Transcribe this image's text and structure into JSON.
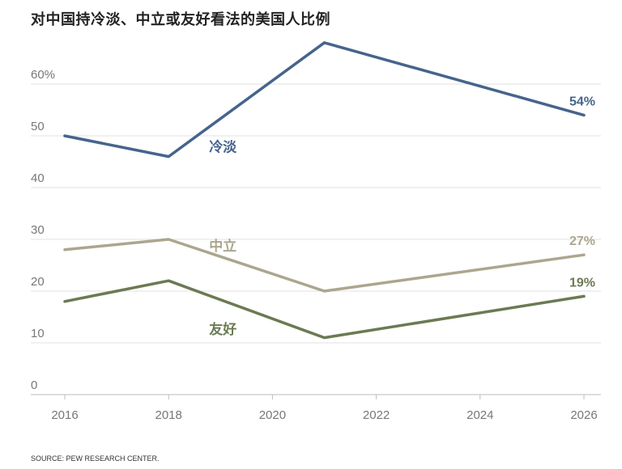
{
  "chart_data": {
    "type": "line",
    "title": "对中国持冷淡、中立或友好看法的美国人比例",
    "xlabel": "",
    "ylabel": "",
    "x": [
      2016,
      2018,
      2021,
      2026
    ],
    "xlim": [
      2016,
      2026
    ],
    "ylim": [
      0,
      70
    ],
    "x_ticks": [
      2016,
      2018,
      2020,
      2022,
      2024,
      2026
    ],
    "x_tick_labels": [
      "2016",
      "2018",
      "2020",
      "2022",
      "2024",
      "2026"
    ],
    "y_ticks": [
      0,
      10,
      20,
      30,
      40,
      50,
      60
    ],
    "y_tick_labels": [
      "0",
      "10",
      "20",
      "30",
      "40",
      "50",
      "60%"
    ],
    "grid": true,
    "series": [
      {
        "name": "冷淡",
        "color": "#46648c",
        "values": [
          50,
          46,
          68,
          54
        ],
        "end_label": "54%"
      },
      {
        "name": "中立",
        "color": "#aca68f",
        "values": [
          28,
          30,
          20,
          27
        ],
        "end_label": "27%"
      },
      {
        "name": "友好",
        "color": "#6b7a53",
        "values": [
          18,
          22,
          11,
          19
        ],
        "end_label": "19%"
      }
    ],
    "source": "SOURCE: PEW RESEARCH CENTER."
  }
}
